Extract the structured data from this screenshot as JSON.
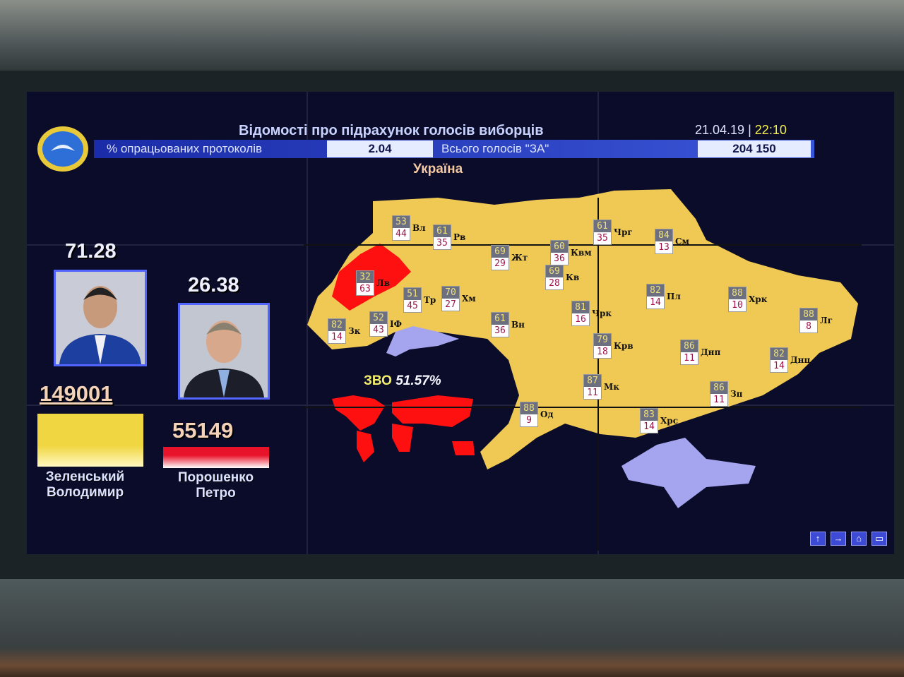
{
  "header": {
    "title": "Відомості про підрахунок голосів виборців",
    "date": "21.04.19",
    "separator": "|",
    "time": "22:10",
    "processed_label": "% опрацьованих протоколів",
    "processed_value": "2.04",
    "total_label": "Всього голосів \"ЗА\"",
    "total_value": "204 150"
  },
  "map": {
    "title": "Україна",
    "abroad_label": "ЗВО",
    "abroad_value": "51.57%",
    "colors": {
      "zelensky": "#f0c955",
      "poroshenko": "#ff1010",
      "background": "#0b0c2a",
      "no_data": "#a5a4ef"
    },
    "regions": [
      {
        "abbr": "Вл",
        "top": "53",
        "bottom": "44"
      },
      {
        "abbr": "Рв",
        "top": "61",
        "bottom": "35"
      },
      {
        "abbr": "Жт",
        "top": "69",
        "bottom": "29"
      },
      {
        "abbr": "Квм",
        "top": "60",
        "bottom": "36"
      },
      {
        "abbr": "Кв",
        "top": "69",
        "bottom": "28"
      },
      {
        "abbr": "Чрг",
        "top": "61",
        "bottom": "35"
      },
      {
        "abbr": "См",
        "top": "84",
        "bottom": "13"
      },
      {
        "abbr": "Лв",
        "top": "32",
        "bottom": "63"
      },
      {
        "abbr": "Тр",
        "top": "51",
        "bottom": "45"
      },
      {
        "abbr": "Хм",
        "top": "70",
        "bottom": "27"
      },
      {
        "abbr": "Зк",
        "top": "82",
        "bottom": "14"
      },
      {
        "abbr": "ІФ",
        "top": "52",
        "bottom": "43"
      },
      {
        "abbr": "Вн",
        "top": "61",
        "bottom": "36"
      },
      {
        "abbr": "Чрк",
        "top": "81",
        "bottom": "16"
      },
      {
        "abbr": "Пл",
        "top": "82",
        "bottom": "14"
      },
      {
        "abbr": "Хрк",
        "top": "88",
        "bottom": "10"
      },
      {
        "abbr": "Лг",
        "top": "88",
        "bottom": "8"
      },
      {
        "abbr": "Крв",
        "top": "79",
        "bottom": "18"
      },
      {
        "abbr": "Днп",
        "top": "86",
        "bottom": "11"
      },
      {
        "abbr": "Днц",
        "top": "82",
        "bottom": "14"
      },
      {
        "abbr": "Мк",
        "top": "87",
        "bottom": "11"
      },
      {
        "abbr": "Зп",
        "top": "86",
        "bottom": "11"
      },
      {
        "abbr": "Од",
        "top": "88",
        "bottom": "9"
      },
      {
        "abbr": "Хрс",
        "top": "83",
        "bottom": "14"
      }
    ]
  },
  "candidates": [
    {
      "percent": "71.28",
      "votes": "149001",
      "name_line1": "Зеленський",
      "name_line2": "Володимир",
      "color": "#f0d640"
    },
    {
      "percent": "26.38",
      "votes": "55149",
      "name_line1": "Порошенко",
      "name_line2": "Петро",
      "color": "#e8122a"
    }
  ],
  "nav": {
    "icons": [
      "arrow-up-icon",
      "arrow-right-icon",
      "home-icon",
      "menu-icon"
    ],
    "glyphs": [
      "↑",
      "→",
      "⌂",
      "▭"
    ]
  }
}
